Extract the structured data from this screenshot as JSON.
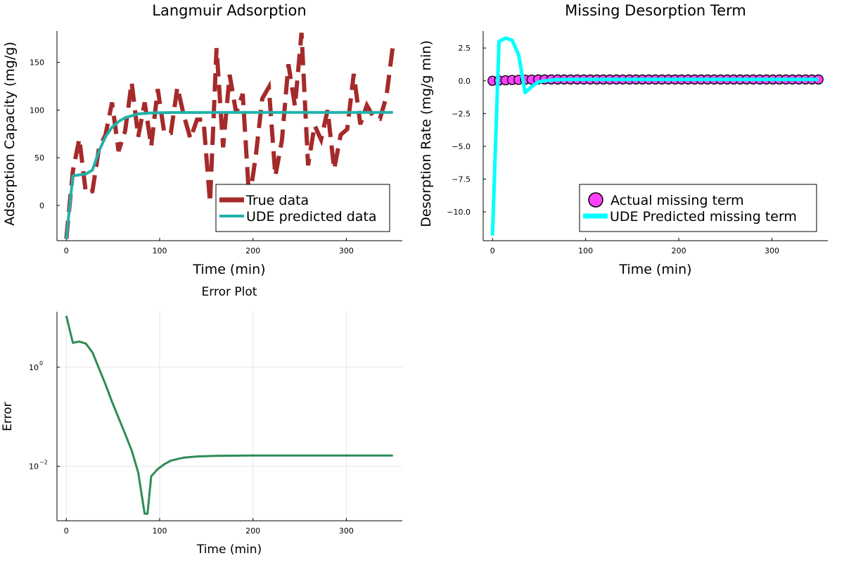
{
  "chart_data": [
    {
      "type": "line",
      "title": "Langmuir Adsorption",
      "xlabel": "Time (min)",
      "ylabel": "Adsorption Capacity (mg/g)",
      "xlim": [
        -10,
        360
      ],
      "ylim": [
        -37,
        183
      ],
      "xticks": [
        0,
        100,
        200,
        300
      ],
      "yticks": [
        0,
        50,
        100,
        150
      ],
      "grid": false,
      "legend_position": "bottom-right",
      "series": [
        {
          "name": "True data",
          "color": "#a52a2a",
          "style": "dashed",
          "x": [
            0,
            7,
            14,
            21,
            28,
            35,
            42,
            49,
            56,
            63,
            70,
            77,
            84,
            91,
            98,
            105,
            112,
            119,
            126,
            133,
            140,
            147,
            154,
            161,
            168,
            175,
            182,
            189,
            196,
            203,
            210,
            217,
            224,
            231,
            238,
            245,
            252,
            259,
            266,
            273,
            280,
            287,
            294,
            301,
            308,
            315,
            322,
            329,
            336,
            343,
            350
          ],
          "values": [
            -35,
            36,
            70,
            13,
            15,
            60,
            74,
            108,
            57,
            78,
            129,
            72,
            108,
            62,
            122,
            76,
            76,
            124,
            94,
            70,
            90,
            90,
            3,
            165,
            61,
            137,
            97,
            117,
            5,
            52,
            112,
            124,
            31,
            68,
            148,
            104,
            181,
            42,
            84,
            69,
            100,
            38,
            74,
            80,
            138,
            85,
            105,
            93,
            91,
            114,
            168
          ]
        },
        {
          "name": "UDE predicted data",
          "color": "#20b2aa",
          "style": "solid",
          "x": [
            0,
            7,
            14,
            21,
            28,
            35,
            42,
            49,
            56,
            63,
            70,
            77,
            84,
            91,
            98,
            105,
            112,
            119,
            126,
            140,
            160,
            200,
            250,
            300,
            350
          ],
          "values": [
            -35,
            31,
            32,
            33,
            37,
            57,
            72,
            82,
            88,
            92,
            94,
            96,
            96.5,
            97,
            97.2,
            97.3,
            97.4,
            97.4,
            97.4,
            97.4,
            97.5,
            97.5,
            97.5,
            97.5,
            97.5
          ]
        }
      ]
    },
    {
      "type": "line",
      "title": "Missing Desorption Term",
      "xlabel": "Time (min)",
      "ylabel": "Desorption Rate (mg/g min)",
      "xlim": [
        -10,
        360
      ],
      "ylim": [
        -12.2,
        3.8
      ],
      "xticks": [
        0,
        100,
        200,
        300
      ],
      "yticks": [
        2.5,
        0.0,
        -2.5,
        -5.0,
        -7.5,
        -10.0
      ],
      "ytick_labels": [
        "2.5",
        "0.0",
        "−2.5",
        "−5.0",
        "−7.5",
        "−10.0"
      ],
      "grid": false,
      "legend_position": "bottom-right",
      "series": [
        {
          "name": "Actual missing term",
          "color": "#ff40ff",
          "style": "markers",
          "x": [
            0,
            7,
            14,
            21,
            28,
            35,
            42,
            49,
            56,
            63,
            70,
            77,
            84,
            91,
            98,
            105,
            112,
            119,
            126,
            133,
            140,
            147,
            154,
            161,
            168,
            175,
            182,
            189,
            196,
            203,
            210,
            217,
            224,
            231,
            238,
            245,
            252,
            259,
            266,
            273,
            280,
            287,
            294,
            301,
            308,
            315,
            322,
            329,
            336,
            343,
            350
          ],
          "values": [
            0.0,
            0.02,
            0.04,
            0.06,
            0.07,
            0.08,
            0.09,
            0.1,
            0.1,
            0.1,
            0.1,
            0.1,
            0.1,
            0.1,
            0.1,
            0.1,
            0.1,
            0.1,
            0.1,
            0.1,
            0.1,
            0.1,
            0.1,
            0.1,
            0.1,
            0.1,
            0.1,
            0.1,
            0.1,
            0.1,
            0.1,
            0.1,
            0.1,
            0.1,
            0.1,
            0.1,
            0.1,
            0.1,
            0.1,
            0.1,
            0.1,
            0.1,
            0.1,
            0.1,
            0.1,
            0.1,
            0.1,
            0.1,
            0.1,
            0.1,
            0.1
          ]
        },
        {
          "name": "UDE Predicted missing term",
          "color": "#00ffff",
          "style": "solid",
          "x": [
            0,
            7,
            14,
            21,
            28,
            35,
            42,
            49,
            56,
            63,
            70,
            77,
            84,
            91,
            98,
            105,
            126,
            160,
            200,
            250,
            300,
            350
          ],
          "values": [
            -11.8,
            3.0,
            3.25,
            3.1,
            2.0,
            -0.9,
            -0.45,
            -0.1,
            0.0,
            0.05,
            0.08,
            0.09,
            0.1,
            0.1,
            0.1,
            0.1,
            0.1,
            0.1,
            0.1,
            0.1,
            0.1,
            0.1
          ]
        }
      ]
    },
    {
      "type": "line",
      "title": "Error Plot",
      "xlabel": "Time (min)",
      "ylabel": "Error",
      "xlim": [
        -10,
        360
      ],
      "ylim_log10": [
        -3.1,
        1.12
      ],
      "yscale": "log",
      "xticks": [
        0,
        100,
        200,
        300
      ],
      "yticks_log10": [
        0,
        -2
      ],
      "ytick_base": "10",
      "ytick_exponents": [
        "0",
        "−2"
      ],
      "grid": true,
      "series": [
        {
          "color": "#2e8b57",
          "style": "solid",
          "x": [
            0,
            7,
            14,
            21,
            28,
            35,
            42,
            49,
            56,
            63,
            70,
            77,
            84,
            87,
            91,
            98,
            105,
            112,
            119,
            126,
            140,
            160,
            200,
            250,
            300,
            350
          ],
          "values": [
            10.9,
            3.1,
            3.3,
            3.0,
            2.0,
            0.95,
            0.45,
            0.2,
            0.095,
            0.045,
            0.021,
            0.0075,
            0.0011,
            0.0011,
            0.0063,
            0.0088,
            0.011,
            0.013,
            0.014,
            0.015,
            0.0158,
            0.0162,
            0.0165,
            0.0165,
            0.0165,
            0.0165
          ]
        }
      ]
    }
  ]
}
